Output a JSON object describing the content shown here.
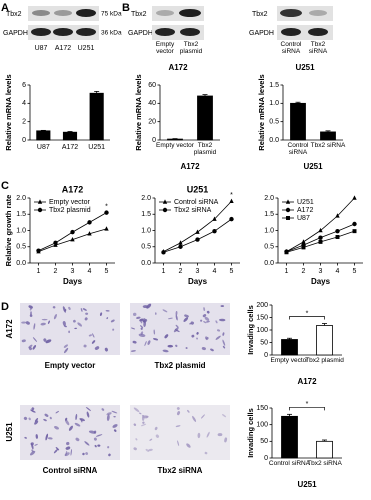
{
  "panel_labels": [
    "A",
    "B",
    "C",
    "D"
  ],
  "blots": [
    {
      "rows": [
        "Tbx2",
        "GAPDH"
      ],
      "sizes": [
        "75 kDa",
        "36 kDa"
      ],
      "lanes": [
        "U87",
        "A172",
        "U251"
      ]
    },
    {
      "rows": [
        "Tbx2",
        "GAPDH"
      ],
      "lanes": [
        "Empty vector",
        "Tbx2 plasmid"
      ],
      "cell_line": "A172"
    },
    {
      "rows": [
        "Tbx2",
        "GAPDH"
      ],
      "lanes": [
        "Control siRNA",
        "Tbx2 siRNA"
      ],
      "cell_line": "U251"
    }
  ],
  "images": [
    {
      "row_label": "A172",
      "captions": [
        "Empty vector",
        "Tbx2 plasmid"
      ]
    },
    {
      "row_label": "U251",
      "captions": [
        "Control siRNA",
        "Tbx2 siRNA"
      ]
    }
  ],
  "chart_data": [
    {
      "type": "bar",
      "ylabel": "Relative mRNA levels",
      "categories": [
        "U87",
        "A172",
        "U251"
      ],
      "values": [
        1.0,
        0.85,
        5.1
      ],
      "errors": [
        0.05,
        0.08,
        0.2
      ],
      "colors": [
        "#000000",
        "#000000",
        "#000000"
      ],
      "ylim": [
        0,
        6
      ],
      "yticks": [
        0,
        2,
        4,
        6
      ]
    },
    {
      "type": "bar",
      "ylabel": "Relative mRNA levels",
      "xlabel": "A172",
      "categories": [
        "Empty vector",
        "Tbx2 plasmid"
      ],
      "values": [
        1,
        48
      ],
      "errors": [
        0.5,
        1.5
      ],
      "colors": [
        "#000000",
        "#000000"
      ],
      "ylim": [
        0,
        60
      ],
      "yticks": [
        0,
        20,
        40,
        60
      ]
    },
    {
      "type": "bar",
      "ylabel": "Relative mRNA levels",
      "xlabel": "U251",
      "categories": [
        "Control siRNA",
        "Tbx2 siRNA"
      ],
      "values": [
        1.0,
        0.22
      ],
      "errors": [
        0.03,
        0.03
      ],
      "colors": [
        "#000000",
        "#000000"
      ],
      "ylim": [
        0,
        1.5
      ],
      "yticks": [
        {
          "value": 0,
          "label": "0.0"
        },
        {
          "value": 0.5,
          "label": "0.5"
        },
        {
          "value": 1,
          "label": "1.0"
        },
        {
          "value": 1.5,
          "label": "1.5"
        }
      ]
    },
    {
      "type": "line",
      "title": "A172",
      "xlabel": "Days",
      "ylabel": "Relative growth rate",
      "x": [
        1,
        2,
        3,
        4,
        5
      ],
      "xlim": [
        0.5,
        5.5
      ],
      "xticks": [
        1,
        2,
        3,
        4,
        5
      ],
      "ylim": [
        0,
        2
      ],
      "yticks": [
        {
          "value": 0,
          "label": "0.0"
        },
        {
          "value": 0.5,
          "label": "0.5"
        },
        {
          "value": 1,
          "label": "1.0"
        },
        {
          "value": 1.5,
          "label": "1.5"
        },
        {
          "value": 2,
          "label": "2.0"
        }
      ],
      "annotation": "*",
      "series": [
        {
          "name": "Empty vector",
          "marker": "triangle",
          "color": "#000000",
          "values": [
            0.35,
            0.55,
            0.72,
            0.9,
            1.05
          ]
        },
        {
          "name": "Tbx2 plasmid",
          "marker": "circle",
          "color": "#000000",
          "values": [
            0.38,
            0.62,
            0.95,
            1.25,
            1.55
          ]
        }
      ]
    },
    {
      "type": "line",
      "title": "U251",
      "xlabel": "Days",
      "x": [
        1,
        2,
        3,
        4,
        5
      ],
      "xlim": [
        0.5,
        5.5
      ],
      "xticks": [
        1,
        2,
        3,
        4,
        5
      ],
      "ylim": [
        0,
        2
      ],
      "yticks": [
        {
          "value": 0,
          "label": "0.0"
        },
        {
          "value": 0.5,
          "label": "0.5"
        },
        {
          "value": 1,
          "label": "1.0"
        },
        {
          "value": 1.5,
          "label": "1.5"
        },
        {
          "value": 2,
          "label": "2.0"
        }
      ],
      "annotation": "*",
      "series": [
        {
          "name": "Control siRNA",
          "marker": "triangle",
          "color": "#000000",
          "values": [
            0.35,
            0.62,
            0.95,
            1.35,
            1.9
          ]
        },
        {
          "name": "Tbx2 siRNA",
          "marker": "circle",
          "color": "#000000",
          "values": [
            0.33,
            0.5,
            0.72,
            0.98,
            1.35
          ]
        }
      ]
    },
    {
      "type": "line",
      "xlabel": "Days",
      "x": [
        1,
        2,
        3,
        4,
        5
      ],
      "xlim": [
        0.5,
        5.5
      ],
      "xticks": [
        1,
        2,
        3,
        4,
        5
      ],
      "ylim": [
        0,
        2
      ],
      "yticks": [
        {
          "value": 0,
          "label": "0.0"
        },
        {
          "value": 0.5,
          "label": "0.5"
        },
        {
          "value": 1,
          "label": "1.0"
        },
        {
          "value": 1.5,
          "label": "1.5"
        },
        {
          "value": 2,
          "label": "2.0"
        }
      ],
      "series": [
        {
          "name": "U251",
          "marker": "triangle",
          "color": "#000000",
          "values": [
            0.35,
            0.65,
            1.0,
            1.45,
            2.0
          ]
        },
        {
          "name": "A172",
          "marker": "circle",
          "color": "#000000",
          "values": [
            0.35,
            0.55,
            0.78,
            0.98,
            1.2
          ]
        },
        {
          "name": "U87",
          "marker": "square",
          "color": "#000000",
          "values": [
            0.33,
            0.48,
            0.65,
            0.8,
            0.98
          ]
        }
      ]
    },
    {
      "type": "bar",
      "ylabel": "Invading cells",
      "xlabel": "A172",
      "categories": [
        "Empty vector",
        "Tbx2 plasmid"
      ],
      "values": [
        62,
        118
      ],
      "errors": [
        5,
        8
      ],
      "colors": [
        "#000000",
        "#ffffff"
      ],
      "ylim": [
        0,
        200
      ],
      "yticks": [
        0,
        50,
        100,
        150,
        200
      ],
      "annotation": "*"
    },
    {
      "type": "bar",
      "ylabel": "Invading cells",
      "xlabel": "U251",
      "categories": [
        "Control siRNA",
        "Tbx2 siRNA"
      ],
      "values": [
        125,
        50
      ],
      "errors": [
        6,
        4
      ],
      "colors": [
        "#000000",
        "#ffffff"
      ],
      "ylim": [
        0,
        150
      ],
      "yticks": [
        0,
        50,
        100,
        150
      ],
      "annotation": "*"
    }
  ]
}
